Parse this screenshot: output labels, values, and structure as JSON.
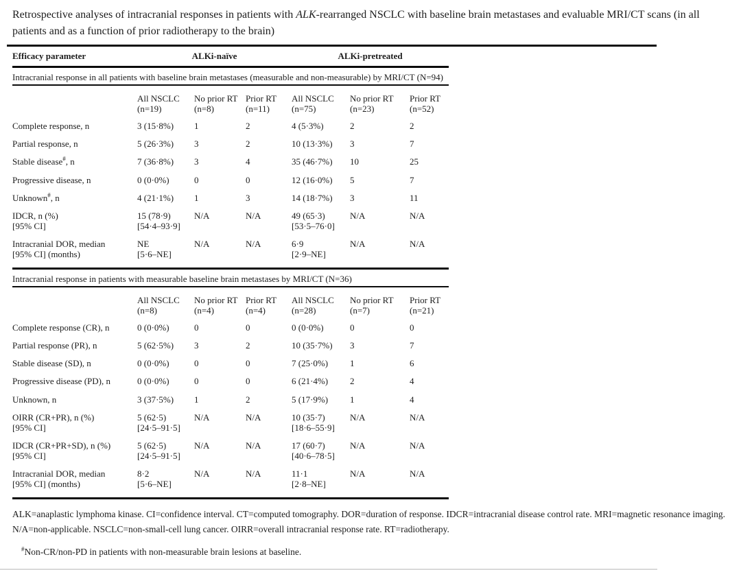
{
  "title": {
    "pre": "Retrospective analyses of intracranial responses in patients with ",
    "italic": "ALK",
    "post": "-rearranged NSCLC with baseline brain metastases and evaluable MRI/CT scans (in all patients and as a function of prior radiotherapy to the brain)"
  },
  "table": {
    "header": {
      "col0": "Efficacy parameter",
      "group1": "ALKi-naïve",
      "group2": "ALKi-pretreated"
    },
    "sections": [
      {
        "heading": "Intracranial response in all patients with baseline brain metastases (measurable and non-measurable) by MRI/CT (N=94)",
        "columns": [
          "All NSCLC\n(n=19)",
          "No prior RT\n(n=8)",
          "Prior RT\n(n=11)",
          "All NSCLC\n(n=75)",
          "No prior RT\n(n=23)",
          "Prior RT\n(n=52)"
        ],
        "rows": [
          {
            "label": "Complete response, n",
            "sup": "",
            "post": "",
            "values": [
              "3 (15·8%)",
              "1",
              "2",
              "4 (5·3%)",
              "2",
              "2"
            ]
          },
          {
            "label": "Partial response, n",
            "sup": "",
            "post": "",
            "values": [
              "5 (26·3%)",
              "3",
              "2",
              "10 (13·3%)",
              "3",
              "7"
            ]
          },
          {
            "label": "Stable disease",
            "sup": "#",
            "post": ", n",
            "values": [
              "7 (36·8%)",
              "3",
              "4",
              "35 (46·7%)",
              "10",
              "25"
            ]
          },
          {
            "label": "Progressive disease, n",
            "sup": "",
            "post": "",
            "values": [
              "0 (0·0%)",
              "0",
              "0",
              "12 (16·0%)",
              "5",
              "7"
            ]
          },
          {
            "label": "Unknown",
            "sup": "#",
            "post": ", n",
            "values": [
              "4 (21·1%)",
              "1",
              "3",
              "14 (18·7%)",
              "3",
              "11"
            ]
          },
          {
            "label": "IDCR, n (%)\n[95% CI]",
            "sup": "",
            "post": "",
            "values": [
              "15 (78·9)\n[54·4–93·9]",
              "N/A",
              "N/A",
              "49 (65·3)\n[53·5–76·0]",
              "N/A",
              "N/A"
            ]
          },
          {
            "label": "Intracranial DOR, median\n[95% CI] (months)",
            "sup": "",
            "post": "",
            "values": [
              "NE\n[5·6–NE]",
              "N/A",
              "N/A",
              "6·9\n[2·9–NE]",
              "N/A",
              "N/A"
            ]
          }
        ]
      },
      {
        "heading": "Intracranial response in patients with measurable baseline brain metastases by MRI/CT (N=36)",
        "columns": [
          "All NSCLC\n(n=8)",
          "No prior RT\n(n=4)",
          "Prior RT\n(n=4)",
          "All NSCLC\n(n=28)",
          "No prior RT\n(n=7)",
          "Prior RT\n(n=21)"
        ],
        "rows": [
          {
            "label": "Complete response (CR), n",
            "sup": "",
            "post": "",
            "values": [
              "0 (0·0%)",
              "0",
              "0",
              "0 (0·0%)",
              "0",
              "0"
            ]
          },
          {
            "label": "Partial response (PR), n",
            "sup": "",
            "post": "",
            "values": [
              "5 (62·5%)",
              "3",
              "2",
              "10 (35·7%)",
              "3",
              "7"
            ]
          },
          {
            "label": "Stable disease (SD), n",
            "sup": "",
            "post": "",
            "values": [
              "0 (0·0%)",
              "0",
              "0",
              "7 (25·0%)",
              "1",
              "6"
            ]
          },
          {
            "label": "Progressive disease (PD), n",
            "sup": "",
            "post": "",
            "values": [
              "0 (0·0%)",
              "0",
              "0",
              "6 (21·4%)",
              "2",
              "4"
            ]
          },
          {
            "label": "Unknown, n",
            "sup": "",
            "post": "",
            "values": [
              "3 (37·5%)",
              "1",
              "2",
              "5 (17·9%)",
              "1",
              "4"
            ]
          },
          {
            "label": "OIRR (CR+PR), n (%)\n[95% CI]",
            "sup": "",
            "post": "",
            "values": [
              "5 (62·5)\n[24·5–91·5]",
              "N/A",
              "N/A",
              "10 (35·7)\n[18·6–55·9]",
              "N/A",
              "N/A"
            ]
          },
          {
            "label": "IDCR (CR+PR+SD), n (%)\n[95% CI]",
            "sup": "",
            "post": "",
            "values": [
              "5 (62·5)\n[24·5–91·5]",
              "N/A",
              "N/A",
              "17 (60·7)\n[40·6–78·5]",
              "N/A",
              "N/A"
            ]
          },
          {
            "label": "Intracranial DOR, median\n[95% CI] (months)",
            "sup": "",
            "post": "",
            "values": [
              "8·2\n[5·6–NE]",
              "N/A",
              "N/A",
              "11·1\n[2·8–NE]",
              "N/A",
              "N/A"
            ]
          }
        ]
      }
    ]
  },
  "footnotes": {
    "abbreviations": "ALK=anaplastic lymphoma kinase. CI=confidence interval. CT=computed tomography. DOR=duration of response. IDCR=intracranial disease control rate. MRI=magnetic resonance imaging. N/A=non-applicable. NSCLC=non-small-cell lung cancer. OIRR=overall intracranial response rate. RT=radiotherapy.",
    "marker": "#",
    "note": "Non-CR/non-PD in patients with non-measurable brain lesions at baseline."
  }
}
